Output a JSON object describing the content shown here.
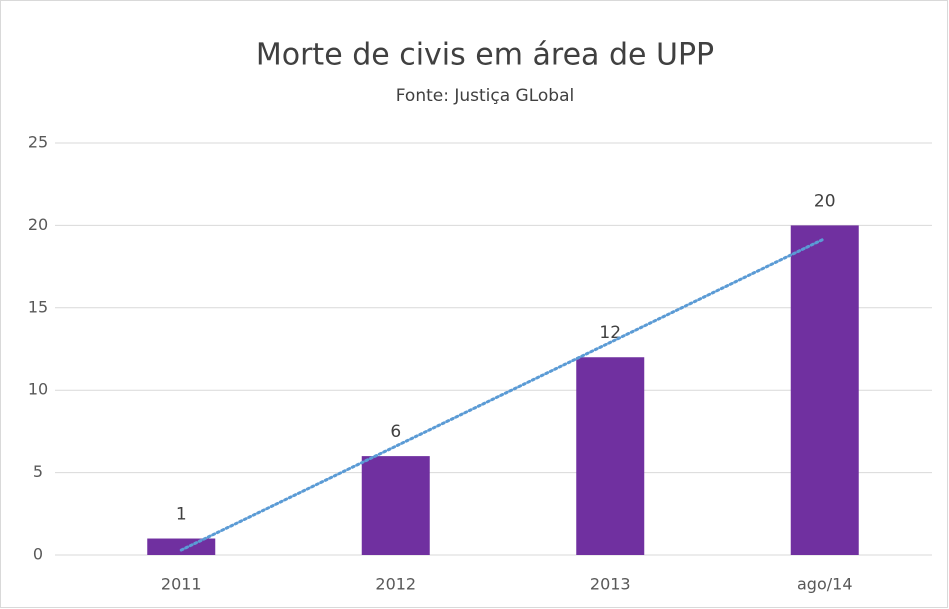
{
  "chart_data": {
    "type": "bar",
    "title": "Morte de civis em área de UPP",
    "subtitle": "Fonte: Justiça GLobal",
    "categories": [
      "2011",
      "2012",
      "2013",
      "ago/14"
    ],
    "values": [
      1,
      6,
      12,
      20
    ],
    "color": "#7030a0",
    "ylim": [
      0,
      25
    ],
    "yticks": [
      0,
      5,
      10,
      15,
      20,
      25
    ],
    "grid": true,
    "trendline": {
      "kind": "linear",
      "color": "#5b9bd5"
    }
  }
}
